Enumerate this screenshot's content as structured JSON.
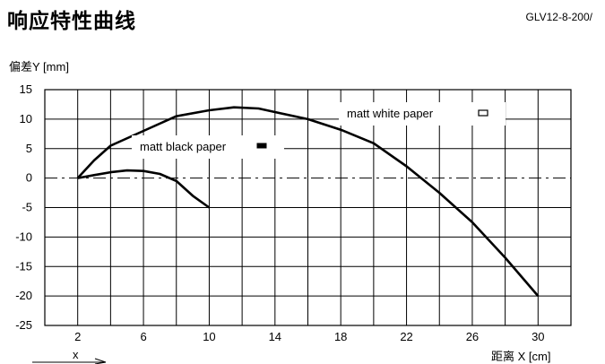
{
  "header": {
    "title": "响应特性曲线",
    "code": "GLV12-8-200/"
  },
  "chart_data": {
    "type": "line",
    "title": "响应特性曲线",
    "ylabel": "偏差Y [mm]",
    "xlabel": "距离 X [cm]",
    "xlim": [
      0,
      32
    ],
    "ylim": [
      -25,
      15
    ],
    "x_ticks": [
      2,
      6,
      10,
      14,
      18,
      22,
      26,
      30
    ],
    "y_ticks": [
      15,
      10,
      5,
      0,
      -5,
      -10,
      -15,
      -20,
      -25
    ],
    "grid": true,
    "x_marker_label": "x",
    "series": [
      {
        "name": "matt white paper",
        "marker": "hollow-rect",
        "color": "#000000",
        "points": [
          [
            2,
            0
          ],
          [
            3,
            3
          ],
          [
            4,
            5.5
          ],
          [
            6,
            8
          ],
          [
            8,
            10.5
          ],
          [
            10,
            11.5
          ],
          [
            11.5,
            12
          ],
          [
            13,
            11.8
          ],
          [
            14,
            11.2
          ],
          [
            16,
            10
          ],
          [
            18,
            8.2
          ],
          [
            20,
            5.9
          ],
          [
            22,
            2
          ],
          [
            24,
            -2.5
          ],
          [
            26,
            -7.5
          ],
          [
            28,
            -13.5
          ],
          [
            30,
            -20
          ]
        ]
      },
      {
        "name": "matt black paper",
        "marker": "filled-rect",
        "color": "#000000",
        "points": [
          [
            2,
            0
          ],
          [
            3,
            0.5
          ],
          [
            4,
            1
          ],
          [
            5,
            1.3
          ],
          [
            6,
            1.2
          ],
          [
            7,
            0.7
          ],
          [
            8,
            -0.5
          ],
          [
            9,
            -3
          ],
          [
            10,
            -5
          ]
        ]
      }
    ]
  }
}
